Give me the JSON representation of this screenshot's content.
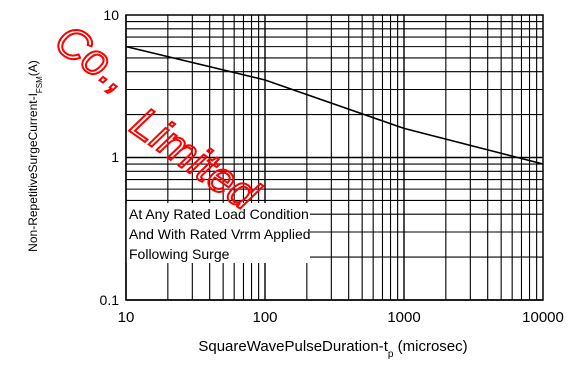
{
  "chart_data": {
    "type": "line",
    "title": "",
    "xlabel_main": "SquareWavePulseDuration-t",
    "xlabel_sub": "p",
    "xlabel_tail": " (microsec)",
    "ylabel_main": "Non-RepetitiveSurgeCurrent-I",
    "ylabel_sub": "FSM",
    "ylabel_tail": "(A)",
    "x_scale": "log",
    "y_scale": "log",
    "xlim": [
      10,
      10000
    ],
    "ylim": [
      0.1,
      10
    ],
    "x_ticks": [
      "10",
      "100",
      "1000",
      "10000"
    ],
    "y_ticks": [
      "10",
      "1",
      "0.1"
    ],
    "grid": true,
    "series": [
      {
        "x": [
          10,
          100,
          1000,
          10000
        ],
        "y": [
          6.0,
          3.5,
          1.6,
          0.9
        ]
      }
    ],
    "annotation_lines": [
      "At Any Rated Load Condition",
      "And With Rated Vrrm Applied",
      "Following Surge"
    ]
  },
  "watermark": {
    "text_top": "Co.,",
    "text_bottom": "Limited",
    "color": "#ff0000"
  }
}
